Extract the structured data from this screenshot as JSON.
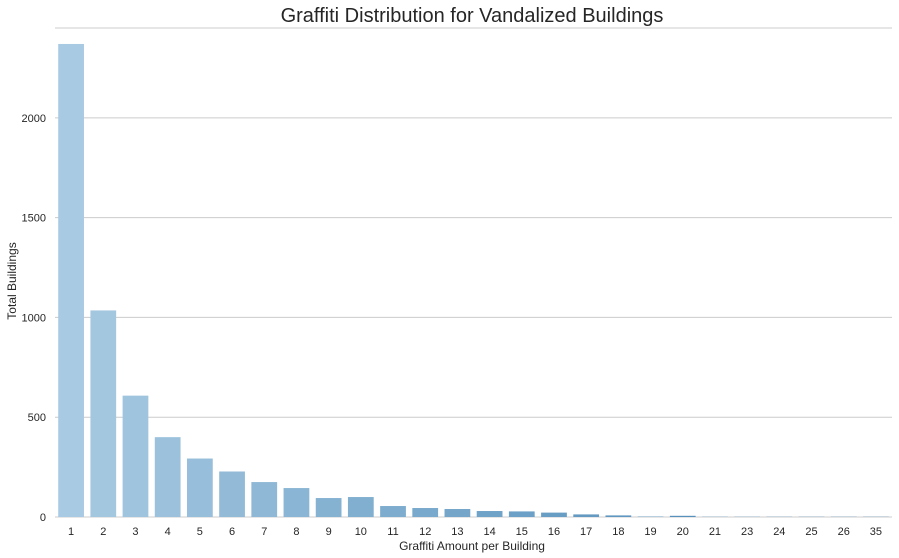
{
  "chart_data": {
    "type": "bar",
    "title": "Graffiti Distribution for Vandalized Buildings",
    "xlabel": "Graffiti Amount per Building",
    "ylabel": "Total Buildings",
    "categories": [
      "1",
      "2",
      "3",
      "4",
      "5",
      "6",
      "7",
      "8",
      "9",
      "10",
      "11",
      "12",
      "13",
      "14",
      "15",
      "16",
      "17",
      "18",
      "19",
      "20",
      "21",
      "23",
      "24",
      "25",
      "26",
      "35"
    ],
    "values": [
      2370,
      1035,
      608,
      400,
      293,
      228,
      175,
      145,
      95,
      100,
      55,
      45,
      40,
      30,
      28,
      22,
      13,
      8,
      2,
      6,
      1,
      1,
      1,
      1,
      1,
      1
    ],
    "ylim": [
      0,
      2450
    ],
    "yticks": [
      0,
      500,
      1000,
      1500,
      2000
    ],
    "grid": "horizontal",
    "colors": {
      "start": "#a8cae2",
      "end": "#3d7fb0",
      "grid": "#cccccc",
      "text": "#262626"
    }
  }
}
